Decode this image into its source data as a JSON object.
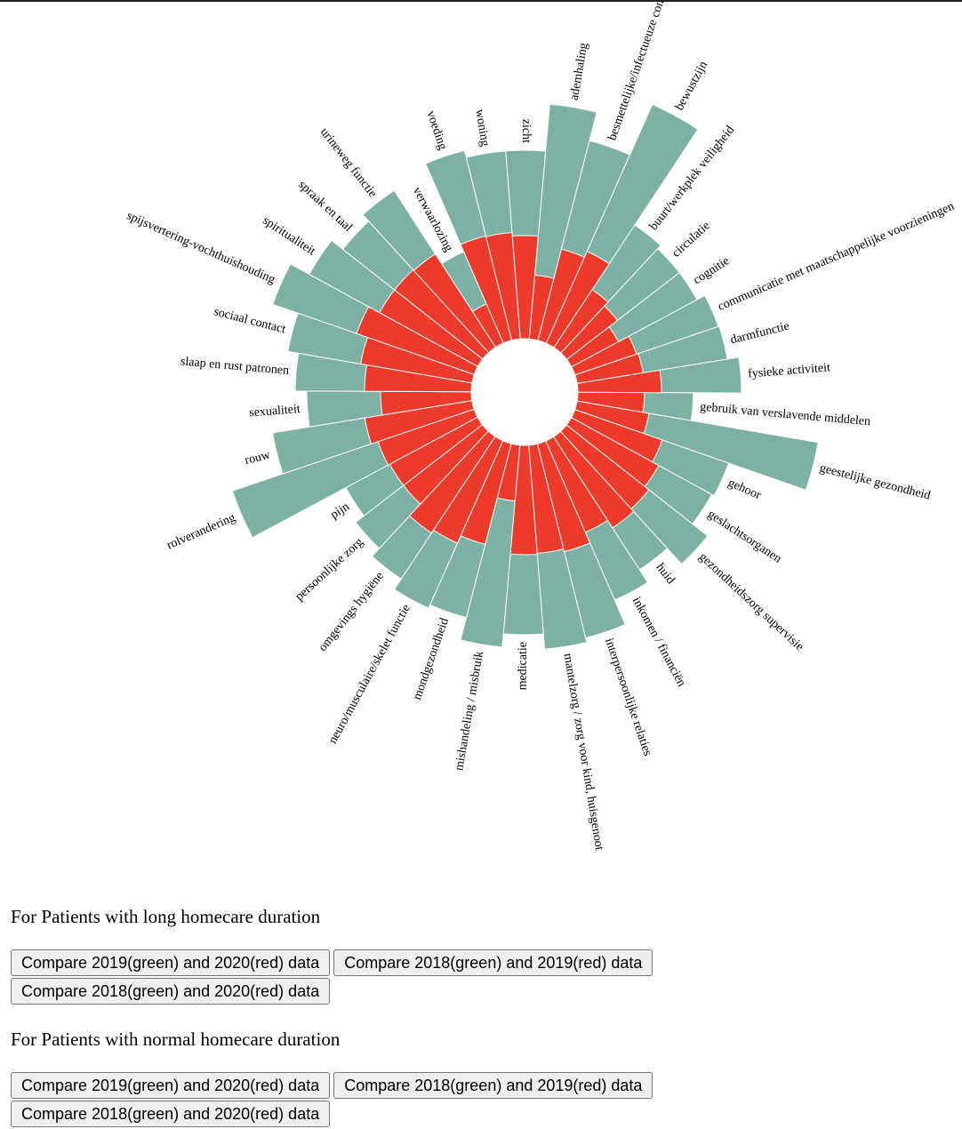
{
  "chart_data": {
    "type": "radial-bar",
    "title": "",
    "series": [
      {
        "color": "#7cb1a4"
      },
      {
        "color": "#ee3a2a"
      }
    ],
    "categories": [
      "ademhaling",
      "besmettelijke/infectueuze conditi",
      "bewustzijn",
      "buurt/werkplek veiligheid",
      "circulatie",
      "cognitie",
      "communicatie met maatschappelijke voorzieningen",
      "darmfunctie",
      "fysieke activiteit",
      "gebruik van verslavende middelen",
      "geestelijke gezondheid",
      "gehoor",
      "geslachtsorganen",
      "gezondheidszorg supervisie",
      "huid",
      "inkomen / financiën",
      "interpersoonlijke relaties",
      "mantelzorg / zorg voor kind, huisgenoot",
      "medicatie",
      "mishandeling / misbruik",
      "mondgezondheid",
      "neuro/musculaire/skelet functie",
      "omgevings hygiëne",
      "persoonlijke zorg",
      "pijn",
      "rolverandering",
      "rouw",
      "sexualiteit",
      "slaap en rust patronen",
      "sociaal contact",
      "spijsvertering-vochthuishouding",
      "spiritualiteit",
      "spraak en taal",
      "urineweg functie",
      "verwaarlozing",
      "voeding",
      "woning",
      "zicht"
    ],
    "green_values": [
      265,
      232,
      294,
      165,
      160,
      160,
      170,
      171,
      184,
      130,
      275,
      183,
      180,
      202,
      178,
      195,
      225,
      230,
      213,
      228,
      202,
      206,
      192,
      180,
      168,
      287,
      227,
      185,
      198,
      210,
      240,
      216,
      200,
      210,
      112,
      220,
      212,
      212
    ],
    "red_values": [
      72,
      106,
      113,
      78,
      72,
      60,
      73,
      75,
      94,
      75,
      82,
      104,
      112,
      118,
      122,
      112,
      125,
      122,
      123,
      63,
      117,
      126,
      130,
      112,
      112,
      114,
      122,
      102,
      120,
      127,
      140,
      126,
      126,
      125,
      48,
      121,
      120,
      116
    ],
    "ylim": [
      0,
      300
    ],
    "inner_radius": 60,
    "start_angle_deg": 5,
    "grid": false,
    "legend": false
  },
  "sections": {
    "long": {
      "title": "For Patients with long homecare duration",
      "buttons": [
        "Compare 2019(green) and 2020(red) data",
        "Compare 2018(green) and 2019(red) data",
        "Compare 2018(green) and 2020(red) data"
      ]
    },
    "normal": {
      "title": "For Patients with normal homecare duration",
      "buttons": [
        "Compare 2019(green) and 2020(red) data",
        "Compare 2018(green) and 2019(red) data",
        "Compare 2018(green) and 2020(red) data"
      ]
    }
  }
}
